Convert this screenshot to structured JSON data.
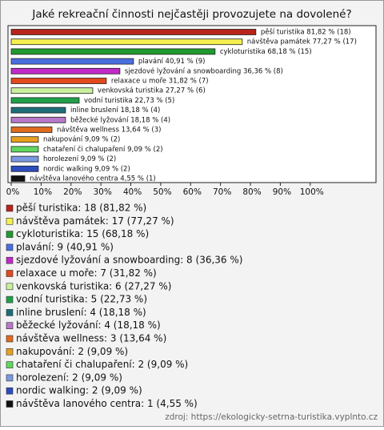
{
  "chart_data": {
    "type": "bar",
    "orientation": "horizontal",
    "title": "Jaké rekreační činnosti nejčastěji provozujete na dovolené?",
    "categories": [
      "pěší turistika",
      "návštěva památek",
      "cykloturistika",
      "plavání",
      "sjezdové lyžování a snowboarding",
      "relaxace u moře",
      "venkovská turistika",
      "vodní turistika",
      "inline bruslení",
      "běžecké lyžování",
      "návštěva wellness",
      "nakupování",
      "chataření či chalupaření",
      "horolezení",
      "nordic walking",
      "návštěva lanového centra"
    ],
    "values": [
      81.82,
      77.27,
      68.18,
      40.91,
      36.36,
      31.82,
      27.27,
      22.73,
      18.18,
      18.18,
      13.64,
      9.09,
      9.09,
      9.09,
      9.09,
      4.55
    ],
    "value_labels": [
      "pěší turistika 81,82 % (18)",
      "návštěva památek 77,27 % (17)",
      "cykloturistika 68,18 % (15)",
      "plavání 40,91 % (9)",
      "sjezdové lyžování a snowboarding 36,36 % (8)",
      "relaxace u moře 31,82 % (7)",
      "venkovská turistika 27,27 % (6)",
      "vodní turistika 22,73 % (5)",
      "inline bruslení 18,18 % (4)",
      "běžecké lyžování 18,18 % (4)",
      "návštěva wellness 13,64 % (3)",
      "nakupování 9,09 % (2)",
      "chataření či chalupaření 9,09 % (2)",
      "horolezení 9,09 % (2)",
      "nordic walking 9,09 % (2)",
      "návštěva lanového centra 4,55 % (1)"
    ],
    "legend_labels": [
      "pěší turistika: 18 (81,82 %)",
      "návštěva památek: 17 (77,27 %)",
      "cykloturistika: 15 (68,18 %)",
      "plavání: 9 (40,91 %)",
      "sjezdové lyžování a snowboarding: 8 (36,36 %)",
      "relaxace u moře: 7 (31,82 %)",
      "venkovská turistika: 6 (27,27 %)",
      "vodní turistika: 5 (22,73 %)",
      "inline bruslení: 4 (18,18 %)",
      "běžecké lyžování: 4 (18,18 %)",
      "návštěva wellness: 3 (13,64 %)",
      "nakupování: 2 (9,09 %)",
      "chataření či chalupaření: 2 (9,09 %)",
      "horolezení: 2 (9,09 %)",
      "nordic walking: 2 (9,09 %)",
      "návštěva lanového centra: 1 (4,55 %)"
    ],
    "colors": [
      "#b8231a",
      "#f5f050",
      "#1f9a2e",
      "#4a6ee0",
      "#c02ac8",
      "#e2491c",
      "#c8f0a0",
      "#20a048",
      "#1e6e78",
      "#b878c8",
      "#e06a1e",
      "#e8a020",
      "#60d860",
      "#7a98e0",
      "#2c4cc0",
      "#111111"
    ],
    "xlim": [
      0,
      122
    ],
    "xticks": [
      {
        "value": 0,
        "label": "0%"
      },
      {
        "value": 10,
        "label": "10%"
      },
      {
        "value": 20,
        "label": "20%"
      },
      {
        "value": 30,
        "label": "30%"
      },
      {
        "value": 40,
        "label": "40%"
      },
      {
        "value": 50,
        "label": "50%"
      },
      {
        "value": 60,
        "label": "60%"
      },
      {
        "value": 70,
        "label": "70%"
      },
      {
        "value": 80,
        "label": "80%"
      },
      {
        "value": 90,
        "label": "90%"
      },
      {
        "value": 100,
        "label": "100%"
      }
    ],
    "source": "zdroj: https://ekologicky-setrna-turistika.vyplnto.cz"
  }
}
